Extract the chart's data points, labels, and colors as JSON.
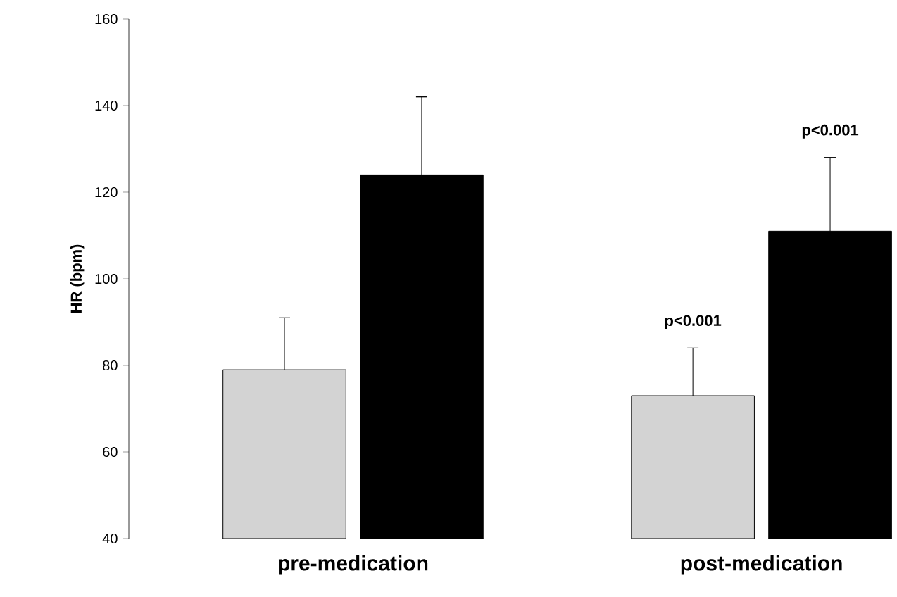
{
  "chart_data": {
    "type": "bar",
    "ylabel": "HR (bpm)",
    "categories": [
      "pre-medication",
      "post-medication"
    ],
    "series": [
      {
        "color": "#d3d3d3",
        "values": [
          79,
          73
        ],
        "errors": [
          [
            79,
            91
          ],
          [
            73,
            84
          ]
        ]
      },
      {
        "color": "#000000",
        "values": [
          124,
          111
        ],
        "errors": [
          [
            124,
            142
          ],
          [
            111,
            128
          ]
        ]
      }
    ],
    "ylim": [
      40,
      160
    ],
    "yticks": [
      40,
      60,
      80,
      100,
      120,
      140,
      160
    ],
    "grid": false,
    "annotations": [
      "p<0.001",
      "p<0.001"
    ]
  }
}
